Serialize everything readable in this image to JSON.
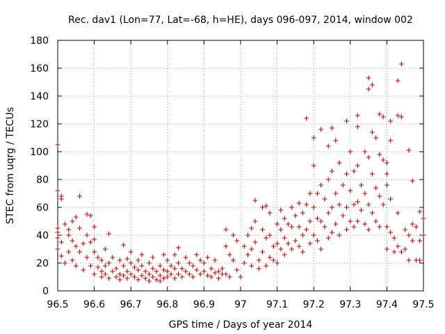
{
  "chart_data": {
    "type": "scatter",
    "title": "Rec. dav1 (Lon=77, Lat=-68, h=HE), days 096-097, 2014, window 002",
    "xlabel": "GPS time / Days of year 2014",
    "ylabel": "STEC from uqrg / TECUs",
    "xlim": [
      96.5,
      97.5
    ],
    "ylim": [
      0,
      180
    ],
    "x_ticks": [
      "96.5",
      "96.6",
      "96.7",
      "96.8",
      "96.9",
      "97",
      "97.1",
      "97.2",
      "97.3",
      "97.4",
      "97.5"
    ],
    "y_ticks": [
      "0",
      "20",
      "40",
      "60",
      "80",
      "100",
      "120",
      "140",
      "160",
      "180"
    ],
    "grid": true,
    "marker": "+",
    "color": "#cc0000",
    "series": [
      {
        "points": [
          [
            96.5,
            105
          ],
          [
            96.5,
            72
          ],
          [
            96.51,
            68
          ],
          [
            96.51,
            66
          ],
          [
            96.5,
            45
          ],
          [
            96.5,
            42
          ],
          [
            96.5,
            38
          ],
          [
            96.5,
            30
          ],
          [
            96.51,
            35
          ],
          [
            96.51,
            25
          ],
          [
            96.52,
            20
          ],
          [
            96.52,
            48
          ],
          [
            96.53,
            40
          ],
          [
            96.53,
            28
          ],
          [
            96.53,
            44
          ],
          [
            96.54,
            50
          ],
          [
            96.54,
            36
          ],
          [
            96.54,
            22
          ],
          [
            96.55,
            53
          ],
          [
            96.55,
            32
          ],
          [
            96.55,
            18
          ],
          [
            96.56,
            68
          ],
          [
            96.56,
            45
          ],
          [
            96.56,
            28
          ],
          [
            96.57,
            34
          ],
          [
            96.57,
            15
          ],
          [
            96.58,
            55
          ],
          [
            96.58,
            40
          ],
          [
            96.58,
            24
          ],
          [
            96.59,
            54
          ],
          [
            96.59,
            35
          ],
          [
            96.59,
            18
          ],
          [
            96.6,
            46
          ],
          [
            96.6,
            37
          ],
          [
            96.6,
            28
          ],
          [
            96.6,
            12
          ],
          [
            96.61,
            24
          ],
          [
            96.61,
            17
          ],
          [
            96.62,
            22
          ],
          [
            96.62,
            14
          ],
          [
            96.62,
            10
          ],
          [
            96.63,
            30
          ],
          [
            96.63,
            18
          ],
          [
            96.63,
            12
          ],
          [
            96.64,
            41
          ],
          [
            96.64,
            20
          ],
          [
            96.64,
            9
          ],
          [
            96.65,
            24
          ],
          [
            96.65,
            14
          ],
          [
            96.66,
            16
          ],
          [
            96.66,
            10
          ],
          [
            96.67,
            22
          ],
          [
            96.67,
            12
          ],
          [
            96.67,
            8
          ],
          [
            96.68,
            33
          ],
          [
            96.68,
            18
          ],
          [
            96.68,
            11
          ],
          [
            96.69,
            23
          ],
          [
            96.69,
            14
          ],
          [
            96.69,
            9
          ],
          [
            96.7,
            28
          ],
          [
            96.7,
            20
          ],
          [
            96.7,
            12
          ],
          [
            96.71,
            17
          ],
          [
            96.71,
            10
          ],
          [
            96.72,
            22
          ],
          [
            96.72,
            15
          ],
          [
            96.72,
            8
          ],
          [
            96.73,
            26
          ],
          [
            96.73,
            18
          ],
          [
            96.73,
            11
          ],
          [
            96.74,
            14
          ],
          [
            96.74,
            9
          ],
          [
            96.75,
            20
          ],
          [
            96.75,
            12
          ],
          [
            96.75,
            7
          ],
          [
            96.76,
            24
          ],
          [
            96.76,
            16
          ],
          [
            96.76,
            10
          ],
          [
            96.77,
            14
          ],
          [
            96.77,
            8
          ],
          [
            96.78,
            18
          ],
          [
            96.78,
            11
          ],
          [
            96.78,
            7
          ],
          [
            96.79,
            26
          ],
          [
            96.79,
            15
          ],
          [
            96.79,
            9
          ],
          [
            96.8,
            22
          ],
          [
            96.8,
            14
          ],
          [
            96.8,
            10
          ],
          [
            96.81,
            18
          ],
          [
            96.81,
            12
          ],
          [
            96.82,
            26
          ],
          [
            96.82,
            16
          ],
          [
            96.82,
            9
          ],
          [
            96.83,
            31
          ],
          [
            96.83,
            20
          ],
          [
            96.83,
            12
          ],
          [
            96.84,
            16
          ],
          [
            96.84,
            10
          ],
          [
            96.85,
            24
          ],
          [
            96.85,
            14
          ],
          [
            96.86,
            20
          ],
          [
            96.86,
            12
          ],
          [
            96.87,
            18
          ],
          [
            96.87,
            10
          ],
          [
            96.88,
            26
          ],
          [
            96.88,
            15
          ],
          [
            96.89,
            22
          ],
          [
            96.89,
            12
          ],
          [
            96.9,
            20
          ],
          [
            96.9,
            14
          ],
          [
            96.91,
            24
          ],
          [
            96.91,
            11
          ],
          [
            96.92,
            16
          ],
          [
            96.92,
            10
          ],
          [
            96.93,
            22
          ],
          [
            96.93,
            13
          ],
          [
            96.94,
            14
          ],
          [
            96.94,
            9
          ],
          [
            96.95,
            16
          ],
          [
            96.95,
            12
          ],
          [
            96.96,
            44
          ],
          [
            96.96,
            32
          ],
          [
            96.96,
            12
          ],
          [
            96.97,
            26
          ],
          [
            96.97,
            10
          ],
          [
            96.98,
            40
          ],
          [
            96.98,
            22
          ],
          [
            96.99,
            36
          ],
          [
            96.99,
            15
          ],
          [
            97.0,
            10
          ],
          [
            97.01,
            32
          ],
          [
            97.01,
            20
          ],
          [
            97.02,
            40
          ],
          [
            97.02,
            26
          ],
          [
            97.03,
            45
          ],
          [
            97.03,
            30
          ],
          [
            97.03,
            18
          ],
          [
            97.04,
            65
          ],
          [
            97.04,
            50
          ],
          [
            97.04,
            35
          ],
          [
            97.05,
            22
          ],
          [
            97.05,
            16
          ],
          [
            97.06,
            60
          ],
          [
            97.06,
            44
          ],
          [
            97.06,
            28
          ],
          [
            97.07,
            61
          ],
          [
            97.07,
            38
          ],
          [
            97.07,
            18
          ],
          [
            97.08,
            56
          ],
          [
            97.08,
            40
          ],
          [
            97.08,
            24
          ],
          [
            97.09,
            32
          ],
          [
            97.09,
            22
          ],
          [
            97.1,
            48
          ],
          [
            97.1,
            34
          ],
          [
            97.1,
            20
          ],
          [
            97.11,
            58
          ],
          [
            97.11,
            44
          ],
          [
            97.11,
            30
          ],
          [
            97.12,
            52
          ],
          [
            97.12,
            38
          ],
          [
            97.12,
            26
          ],
          [
            97.13,
            48
          ],
          [
            97.13,
            34
          ],
          [
            97.14,
            60
          ],
          [
            97.14,
            46
          ],
          [
            97.14,
            30
          ],
          [
            97.15,
            54
          ],
          [
            97.15,
            36
          ],
          [
            97.16,
            63
          ],
          [
            97.16,
            46
          ],
          [
            97.16,
            32
          ],
          [
            97.17,
            56
          ],
          [
            97.17,
            40
          ],
          [
            97.17,
            28
          ],
          [
            97.18,
            124
          ],
          [
            97.18,
            62
          ],
          [
            97.18,
            44
          ],
          [
            97.19,
            70
          ],
          [
            97.19,
            50
          ],
          [
            97.19,
            34
          ],
          [
            97.2,
            110
          ],
          [
            97.2,
            90
          ],
          [
            97.2,
            60
          ],
          [
            97.2,
            40
          ],
          [
            97.21,
            70
          ],
          [
            97.21,
            52
          ],
          [
            97.21,
            36
          ],
          [
            97.22,
            116
          ],
          [
            97.22,
            76
          ],
          [
            97.22,
            50
          ],
          [
            97.22,
            30
          ],
          [
            97.23,
            66
          ],
          [
            97.23,
            46
          ],
          [
            97.24,
            104
          ],
          [
            97.24,
            80
          ],
          [
            97.24,
            56
          ],
          [
            97.24,
            38
          ],
          [
            97.25,
            117
          ],
          [
            97.25,
            86
          ],
          [
            97.25,
            60
          ],
          [
            97.25,
            42
          ],
          [
            97.26,
            108
          ],
          [
            97.26,
            70
          ],
          [
            97.26,
            48
          ],
          [
            97.27,
            92
          ],
          [
            97.27,
            62
          ],
          [
            97.27,
            40
          ],
          [
            97.28,
            76
          ],
          [
            97.28,
            54
          ],
          [
            97.29,
            122
          ],
          [
            97.29,
            84
          ],
          [
            97.29,
            60
          ],
          [
            97.29,
            44
          ],
          [
            97.3,
            100
          ],
          [
            97.3,
            72
          ],
          [
            97.3,
            50
          ],
          [
            97.31,
            86
          ],
          [
            97.31,
            62
          ],
          [
            97.31,
            46
          ],
          [
            97.32,
            126
          ],
          [
            97.32,
            118
          ],
          [
            97.32,
            90
          ],
          [
            97.32,
            64
          ],
          [
            97.32,
            50
          ],
          [
            97.33,
            76
          ],
          [
            97.33,
            58
          ],
          [
            97.34,
            100
          ],
          [
            97.34,
            70
          ],
          [
            97.34,
            48
          ],
          [
            97.35,
            153
          ],
          [
            97.35,
            145
          ],
          [
            97.35,
            96
          ],
          [
            97.35,
            62
          ],
          [
            97.35,
            44
          ],
          [
            97.36,
            148
          ],
          [
            97.36,
            114
          ],
          [
            97.36,
            84
          ],
          [
            97.36,
            56
          ],
          [
            97.37,
            110
          ],
          [
            97.37,
            74
          ],
          [
            97.37,
            50
          ],
          [
            97.38,
            127
          ],
          [
            97.38,
            98
          ],
          [
            97.38,
            68
          ],
          [
            97.38,
            46
          ],
          [
            97.39,
            125
          ],
          [
            97.39,
            94
          ],
          [
            97.39,
            62
          ],
          [
            97.4,
            92
          ],
          [
            97.4,
            84
          ],
          [
            97.4,
            76
          ],
          [
            97.4,
            46
          ],
          [
            97.4,
            30
          ],
          [
            97.41,
            122
          ],
          [
            97.41,
            108
          ],
          [
            97.41,
            66
          ],
          [
            97.41,
            42
          ],
          [
            97.42,
            28
          ],
          [
            97.42,
            38
          ],
          [
            97.43,
            151
          ],
          [
            97.43,
            126
          ],
          [
            97.43,
            56
          ],
          [
            97.43,
            32
          ],
          [
            97.44,
            125
          ],
          [
            97.44,
            28
          ],
          [
            97.44,
            163
          ],
          [
            97.45,
            44
          ],
          [
            97.45,
            30
          ],
          [
            97.46,
            101
          ],
          [
            97.46,
            22
          ],
          [
            97.46,
            40
          ],
          [
            97.47,
            79
          ],
          [
            97.47,
            48
          ],
          [
            97.47,
            36
          ],
          [
            97.48,
            22
          ],
          [
            97.48,
            46
          ],
          [
            97.49,
            57
          ],
          [
            97.49,
            36
          ],
          [
            97.49,
            22
          ],
          [
            97.5,
            52
          ],
          [
            97.5,
            40
          ]
        ]
      }
    ]
  }
}
